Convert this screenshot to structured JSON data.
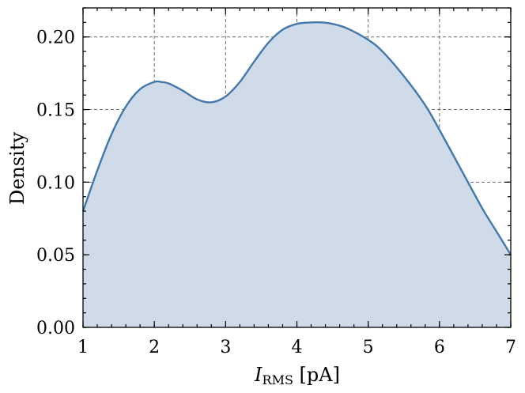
{
  "chart_data": {
    "type": "area",
    "xlabel_main": "I",
    "xlabel_sub": "RMS",
    "xlabel_unit": " [pA]",
    "ylabel": "Density",
    "xlim": [
      1,
      7
    ],
    "ylim": [
      0,
      0.22
    ],
    "xticks": [
      1,
      2,
      3,
      4,
      5,
      6,
      7
    ],
    "yticks": [
      0.0,
      0.05,
      0.1,
      0.15,
      0.2
    ],
    "xtick_labels": [
      "1",
      "2",
      "3",
      "4",
      "5",
      "6",
      "7"
    ],
    "ytick_labels": [
      "0.00",
      "0.05",
      "0.10",
      "0.15",
      "0.20"
    ],
    "grid": true,
    "series": [
      {
        "color": "#4477aa",
        "fill": "#cfdbe8",
        "x": [
          1.0,
          1.2,
          1.4,
          1.6,
          1.8,
          2.0,
          2.1,
          2.2,
          2.4,
          2.6,
          2.8,
          3.0,
          3.2,
          3.4,
          3.6,
          3.8,
          4.0,
          4.2,
          4.35,
          4.5,
          4.7,
          5.0,
          5.2,
          5.5,
          5.8,
          6.0,
          6.3,
          6.6,
          6.8,
          7.0
        ],
        "y": [
          0.08,
          0.108,
          0.133,
          0.152,
          0.164,
          0.169,
          0.169,
          0.168,
          0.163,
          0.157,
          0.155,
          0.159,
          0.169,
          0.183,
          0.196,
          0.205,
          0.209,
          0.21,
          0.21,
          0.209,
          0.206,
          0.198,
          0.19,
          0.173,
          0.153,
          0.136,
          0.109,
          0.082,
          0.066,
          0.05
        ]
      }
    ]
  }
}
